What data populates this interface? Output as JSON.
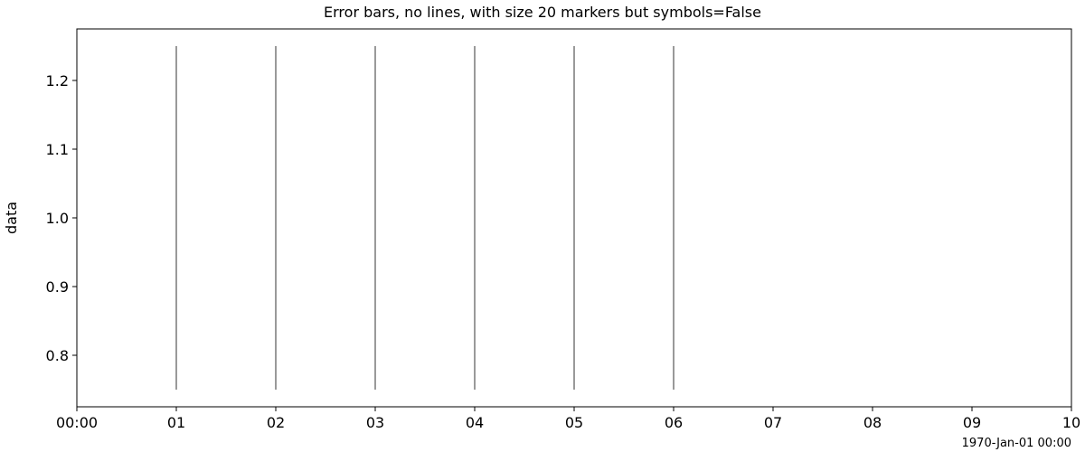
{
  "chart_data": {
    "type": "scatter",
    "title": "Error bars, no lines, with size 20 markers but symbols=False",
    "xlabel": "",
    "ylabel": "data",
    "x_offset_label": "1970-Jan-01 00:00",
    "xlim": [
      0,
      10
    ],
    "ylim": [
      0.725,
      1.275
    ],
    "x_tick_values": [
      0,
      1,
      2,
      3,
      4,
      5,
      6,
      7,
      8,
      9,
      10
    ],
    "x_tick_labels": [
      "00:00",
      "01",
      "02",
      "03",
      "04",
      "05",
      "06",
      "07",
      "08",
      "09",
      "10"
    ],
    "y_tick_values": [
      0.8,
      0.9,
      1.0,
      1.1,
      1.2
    ],
    "y_tick_labels": [
      "0.8",
      "0.9",
      "1.0",
      "1.1",
      "1.2"
    ],
    "grid": false,
    "legend": "none",
    "series": [
      {
        "x": [
          1,
          2,
          3,
          4,
          5,
          6
        ],
        "y": [
          1.0,
          1.0,
          1.0,
          1.0,
          1.0,
          1.0
        ],
        "yerr": [
          0.25,
          0.25,
          0.25,
          0.25,
          0.25,
          0.25
        ],
        "color": "#000000"
      }
    ]
  }
}
